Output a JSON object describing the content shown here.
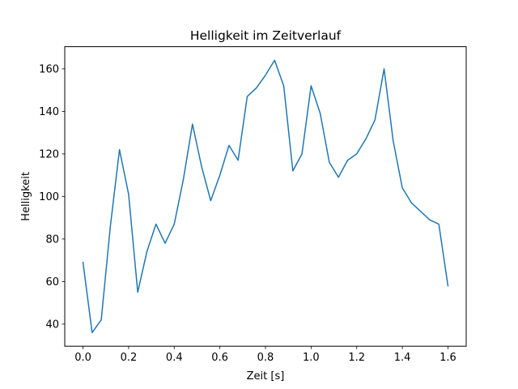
{
  "chart_data": {
    "type": "line",
    "title": "Helligkeit im Zeitverlauf",
    "xlabel": "Zeit [s]",
    "ylabel": "Helligkeit",
    "xlim": [
      -0.08,
      1.68
    ],
    "ylim": [
      29.6,
      170.4
    ],
    "xticks": [
      0.0,
      0.2,
      0.4,
      0.6,
      0.8,
      1.0,
      1.2,
      1.4,
      1.6
    ],
    "xtick_labels": [
      "0.0",
      "0.2",
      "0.4",
      "0.6",
      "0.8",
      "1.0",
      "1.2",
      "1.4",
      "1.6"
    ],
    "yticks": [
      40,
      60,
      80,
      100,
      120,
      140,
      160
    ],
    "ytick_labels": [
      "40",
      "60",
      "80",
      "100",
      "120",
      "140",
      "160"
    ],
    "grid": false,
    "legend": "none",
    "series": [
      {
        "color": "#1f77b4",
        "x": [
          0.0,
          0.04,
          0.08,
          0.12,
          0.16,
          0.2,
          0.24,
          0.28,
          0.32,
          0.36,
          0.4,
          0.44,
          0.48,
          0.52,
          0.56,
          0.6,
          0.64,
          0.68,
          0.72,
          0.76,
          0.8,
          0.84,
          0.88,
          0.92,
          0.96,
          1.0,
          1.04,
          1.08,
          1.12,
          1.16,
          1.2,
          1.24,
          1.28,
          1.32,
          1.36,
          1.4,
          1.44,
          1.48,
          1.52,
          1.56,
          1.6
        ],
        "y": [
          69,
          36,
          42,
          86,
          122,
          101,
          55,
          74,
          87,
          78,
          87,
          108,
          134,
          114,
          98,
          110,
          124,
          117,
          147,
          151,
          157,
          164,
          152,
          112,
          120,
          152,
          139,
          116,
          109,
          117,
          120,
          127,
          136,
          160,
          126,
          104,
          97,
          93,
          89,
          87,
          58
        ]
      }
    ]
  }
}
